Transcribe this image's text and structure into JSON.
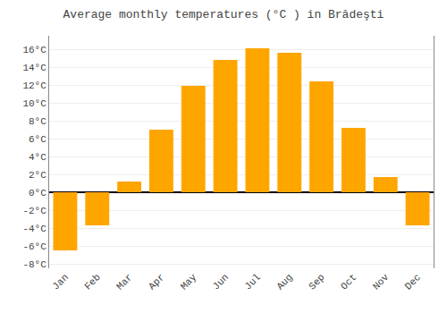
{
  "chart_data": {
    "type": "bar",
    "title": "Average monthly temperatures (°C ) in Brădeşti",
    "categories": [
      "Jan",
      "Feb",
      "Mar",
      "Apr",
      "May",
      "Jun",
      "Jul",
      "Aug",
      "Sep",
      "Oct",
      "Nov",
      "Dec"
    ],
    "values": [
      -6.5,
      -3.7,
      1.2,
      7.0,
      11.9,
      14.8,
      16.1,
      15.6,
      12.4,
      7.2,
      1.7,
      -3.7
    ],
    "color": "#FFA500",
    "ylim": [
      -8.5,
      17.5
    ],
    "yticks": [
      {
        "value": -8,
        "label": "-8°C"
      },
      {
        "value": -6,
        "label": "-6°C"
      },
      {
        "value": -4,
        "label": "-4°C"
      },
      {
        "value": -2,
        "label": "-2°C"
      },
      {
        "value": 0,
        "label": "0°C"
      },
      {
        "value": 2,
        "label": "2°C"
      },
      {
        "value": 4,
        "label": "4°C"
      },
      {
        "value": 6,
        "label": "6°C"
      },
      {
        "value": 8,
        "label": "8°C"
      },
      {
        "value": 10,
        "label": "10°C"
      },
      {
        "value": 12,
        "label": "12°C"
      },
      {
        "value": 14,
        "label": "14°C"
      },
      {
        "value": 16,
        "label": "16°C"
      }
    ],
    "grid": true
  }
}
